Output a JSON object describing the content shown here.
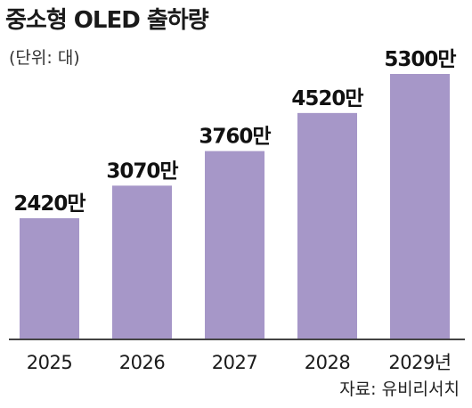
{
  "chart_data": {
    "type": "bar",
    "title": "중소형 OLED 출하량",
    "unit_note": "(단위: 대)",
    "source": "자료: 유비리서치",
    "categories": [
      "2025",
      "2026",
      "2027",
      "2028",
      "2029년"
    ],
    "values": [
      24200000,
      30700000,
      37600000,
      45200000,
      53000000
    ],
    "data_labels": [
      "2420만",
      "3070만",
      "3760만",
      "4520만",
      "5300만"
    ],
    "ylim": [
      0,
      53000000
    ],
    "grid": false,
    "legend": "none",
    "bar_color": "#a697c8",
    "axis_color": "#444444"
  }
}
